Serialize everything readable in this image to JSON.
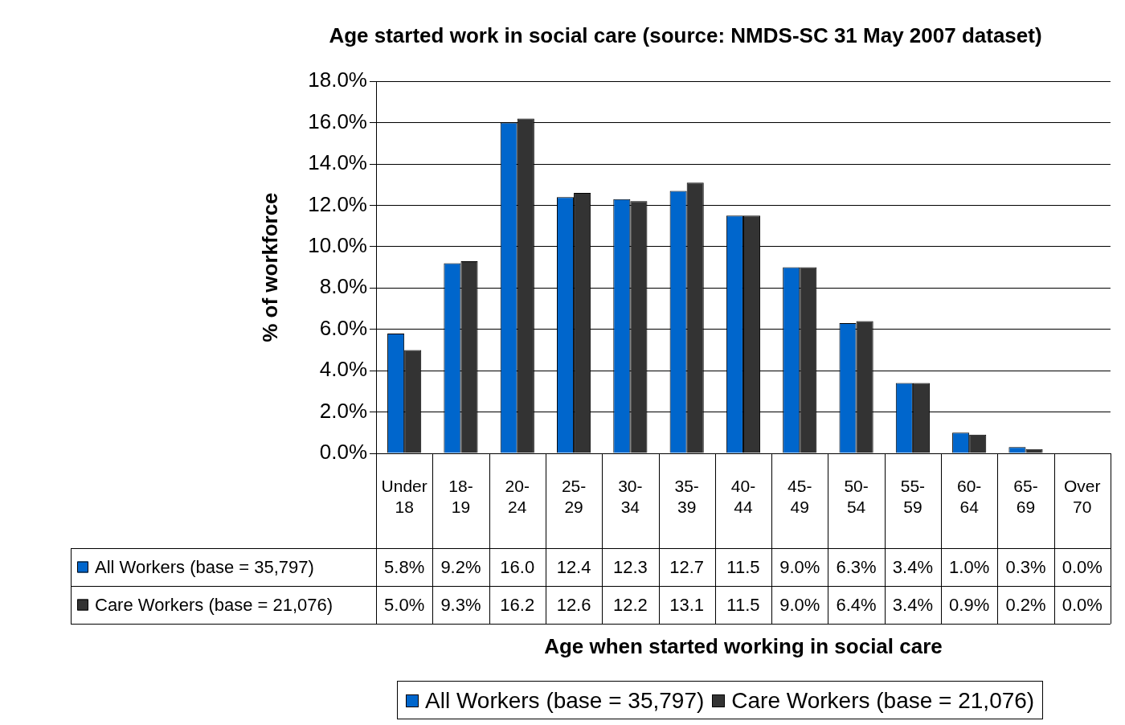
{
  "chart_data": {
    "type": "bar",
    "title": "Age started work in social care (source: NMDS-SC 31 May 2007 dataset)",
    "annotations": [
      "Age when started working in social care"
    ],
    "ylabel": "% of workforce",
    "categories": [
      "Under 18",
      "18-19",
      "20-24",
      "25-29",
      "30-34",
      "35-39",
      "40-44",
      "45-49",
      "50-54",
      "55-59",
      "60-64",
      "65-69",
      "Over 70"
    ],
    "series": [
      {
        "name": "All Workers (base = 35,797)",
        "color": "#0066cc",
        "values": [
          5.8,
          9.2,
          16.0,
          12.4,
          12.3,
          12.7,
          11.5,
          9.0,
          6.3,
          3.4,
          1.0,
          0.3,
          0.0
        ],
        "value_labels": [
          "5.8%",
          "9.2%",
          "16.0",
          "12.4",
          "12.3",
          "12.7",
          "11.5",
          "9.0%",
          "6.3%",
          "3.4%",
          "1.0%",
          "0.3%",
          "0.0%"
        ]
      },
      {
        "name": "Care Workers (base = 21,076)",
        "color": "#333333",
        "values": [
          5.0,
          9.3,
          16.2,
          12.6,
          12.2,
          13.1,
          11.5,
          9.0,
          6.4,
          3.4,
          0.9,
          0.2,
          0.0
        ],
        "value_labels": [
          "5.0%",
          "9.3%",
          "16.2",
          "12.6",
          "12.2",
          "13.1",
          "11.5",
          "9.0%",
          "6.4%",
          "3.4%",
          "0.9%",
          "0.2%",
          "0.0%"
        ]
      }
    ],
    "ylim": [
      0,
      18
    ],
    "yticks": [
      {
        "value": 0,
        "label": "0.0%"
      },
      {
        "value": 2,
        "label": "2.0%"
      },
      {
        "value": 4,
        "label": "4.0%"
      },
      {
        "value": 6,
        "label": "6.0%"
      },
      {
        "value": 8,
        "label": "8.0%"
      },
      {
        "value": 10,
        "label": "10.0%"
      },
      {
        "value": 12,
        "label": "12.0%"
      },
      {
        "value": 14,
        "label": "14.0%"
      },
      {
        "value": 16,
        "label": "16.0%"
      },
      {
        "value": 18,
        "label": "18.0%"
      }
    ],
    "grid": "y",
    "legend": "bottom"
  }
}
